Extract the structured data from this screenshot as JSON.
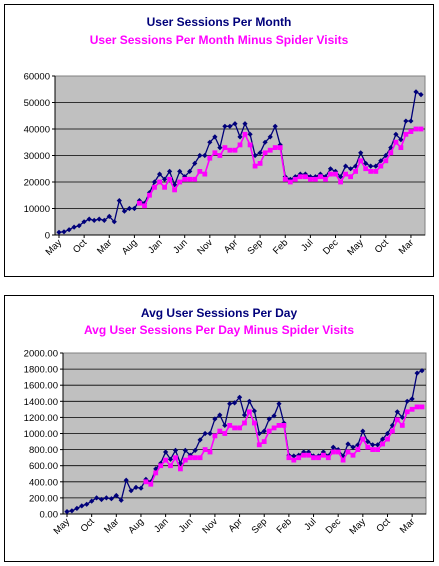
{
  "colors": {
    "series1": "#00007a",
    "series2": "#ff00ff",
    "plot_bg": "#c0c0c0"
  },
  "chart_data": [
    {
      "type": "line",
      "title": "User Sessions Per Month",
      "subtitle": "User Sessions Per Month Minus Spider Visits",
      "ylim": [
        0,
        60000
      ],
      "yticks": [
        "0",
        "10000",
        "20000",
        "30000",
        "40000",
        "50000",
        "60000"
      ],
      "x_tick_labels": [
        {
          "label": "May",
          "index": 0
        },
        {
          "label": "Oct",
          "index": 5
        },
        {
          "label": "Mar",
          "index": 10
        },
        {
          "label": "Aug",
          "index": 15
        },
        {
          "label": "Jan",
          "index": 20
        },
        {
          "label": "Jun",
          "index": 25
        },
        {
          "label": "Nov",
          "index": 30
        },
        {
          "label": "Apr",
          "index": 35
        },
        {
          "label": "Sep",
          "index": 40
        },
        {
          "label": "Feb",
          "index": 45
        },
        {
          "label": "Jul",
          "index": 50
        },
        {
          "label": "Dec",
          "index": 55
        },
        {
          "label": "May",
          "index": 60
        },
        {
          "label": "Oct",
          "index": 65
        },
        {
          "label": "Mar",
          "index": 70
        }
      ],
      "grid": true,
      "series": [
        {
          "values": [
            1000,
            1200,
            2000,
            3000,
            3500,
            5000,
            6000,
            5500,
            6000,
            5500,
            7000,
            5000,
            13000,
            9000,
            10000,
            10000,
            13000,
            12000,
            16000,
            20000,
            23000,
            21000,
            24000,
            19000,
            24000,
            22000,
            24000,
            27000,
            30000,
            30000,
            35000,
            37000,
            33000,
            41000,
            41000,
            42000,
            37000,
            42000,
            38000,
            30000,
            31000,
            35000,
            37000,
            41000,
            34000,
            22000,
            21000,
            22000,
            23000,
            23000,
            22000,
            22000,
            23000,
            22000,
            25000,
            24000,
            22000,
            26000,
            25000,
            26000,
            31000,
            27000,
            26000,
            26000,
            28000,
            30000,
            33000,
            38000,
            36000,
            43000,
            43000,
            54000,
            53000
          ]
        },
        {
          "values": [
            null,
            null,
            null,
            null,
            null,
            null,
            null,
            null,
            null,
            null,
            null,
            null,
            null,
            null,
            null,
            null,
            12000,
            11000,
            15000,
            18000,
            20000,
            18000,
            21000,
            17000,
            20000,
            21000,
            21000,
            21000,
            24000,
            23000,
            29000,
            31000,
            30000,
            33000,
            32000,
            32000,
            34000,
            38000,
            34000,
            26000,
            27000,
            31000,
            32000,
            33000,
            33000,
            21000,
            20000,
            21000,
            22000,
            22000,
            21000,
            21000,
            22000,
            21000,
            23000,
            23000,
            20000,
            23000,
            22000,
            24000,
            28000,
            25000,
            24000,
            24000,
            26000,
            28000,
            31000,
            35000,
            33000,
            38000,
            39000,
            40000,
            40000
          ]
        }
      ]
    },
    {
      "type": "line",
      "title": "Avg User Sessions Per Day",
      "subtitle": "Avg User Sessions Per Day Minus Spider Visits",
      "ylim": [
        0,
        2000
      ],
      "yticks": [
        "0.00",
        "200.00",
        "400.00",
        "600.00",
        "800.00",
        "1000.00",
        "1200.00",
        "1400.00",
        "1600.00",
        "1800.00",
        "2000.00"
      ],
      "x_tick_labels": [
        {
          "label": "May",
          "index": 0
        },
        {
          "label": "Oct",
          "index": 5
        },
        {
          "label": "Mar",
          "index": 10
        },
        {
          "label": "Aug",
          "index": 15
        },
        {
          "label": "Jan",
          "index": 20
        },
        {
          "label": "Jun",
          "index": 25
        },
        {
          "label": "Nov",
          "index": 30
        },
        {
          "label": "Apr",
          "index": 35
        },
        {
          "label": "Sep",
          "index": 40
        },
        {
          "label": "Feb",
          "index": 45
        },
        {
          "label": "Jul",
          "index": 50
        },
        {
          "label": "Dec",
          "index": 55
        },
        {
          "label": "May",
          "index": 60
        },
        {
          "label": "Oct",
          "index": 65
        },
        {
          "label": "Mar",
          "index": 70
        }
      ],
      "grid": true,
      "series": [
        {
          "values": [
            30,
            40,
            70,
            100,
            120,
            160,
            200,
            180,
            200,
            190,
            230,
            170,
            420,
            290,
            330,
            320,
            430,
            400,
            560,
            630,
            770,
            680,
            790,
            630,
            790,
            730,
            790,
            920,
            1000,
            1000,
            1180,
            1230,
            1100,
            1370,
            1380,
            1450,
            1230,
            1400,
            1280,
            1000,
            1030,
            1180,
            1220,
            1370,
            1130,
            730,
            720,
            730,
            770,
            770,
            720,
            720,
            770,
            720,
            830,
            800,
            720,
            870,
            830,
            860,
            1030,
            900,
            860,
            860,
            930,
            1000,
            1100,
            1270,
            1200,
            1400,
            1430,
            1750,
            1780
          ]
        },
        {
          "values": [
            null,
            null,
            null,
            null,
            null,
            null,
            null,
            null,
            null,
            null,
            null,
            null,
            null,
            null,
            null,
            null,
            400,
            370,
            510,
            600,
            670,
            600,
            700,
            560,
            670,
            700,
            700,
            700,
            800,
            770,
            970,
            1030,
            1000,
            1100,
            1070,
            1070,
            1130,
            1270,
            1130,
            860,
            900,
            1030,
            1070,
            1100,
            1100,
            700,
            670,
            700,
            730,
            730,
            700,
            700,
            730,
            700,
            770,
            770,
            670,
            770,
            730,
            800,
            930,
            830,
            800,
            800,
            870,
            930,
            1030,
            1170,
            1100,
            1270,
            1300,
            1330,
            1330
          ]
        }
      ]
    }
  ]
}
